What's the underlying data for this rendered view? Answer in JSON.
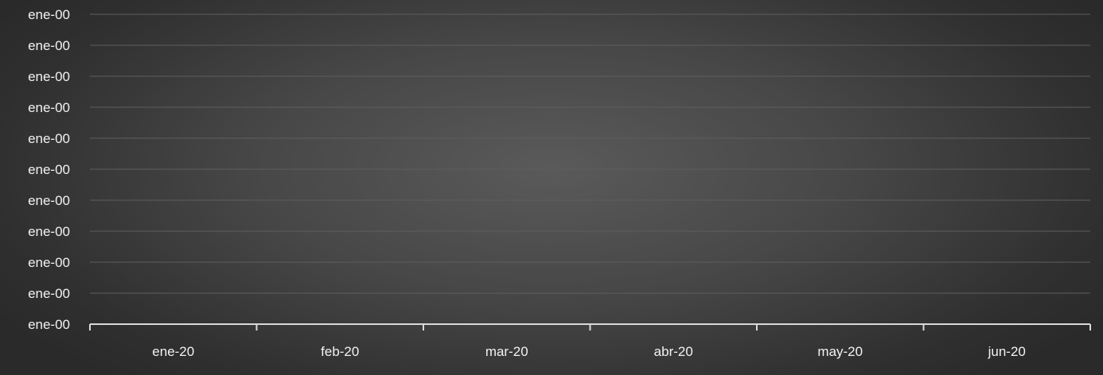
{
  "chart_data": {
    "type": "line",
    "title": "",
    "xlabel": "",
    "ylabel": "",
    "categories": [
      "ene-20",
      "feb-20",
      "mar-20",
      "abr-20",
      "may-20",
      "jun-20"
    ],
    "y_tick_labels": [
      "ene-00",
      "ene-00",
      "ene-00",
      "ene-00",
      "ene-00",
      "ene-00",
      "ene-00",
      "ene-00",
      "ene-00",
      "ene-00",
      "ene-00"
    ],
    "series": [],
    "grid": true,
    "legend": "none"
  },
  "colors": {
    "gridline": "#5e5e5e",
    "axis": "#d9d9d9",
    "text": "#f2f2f2"
  }
}
